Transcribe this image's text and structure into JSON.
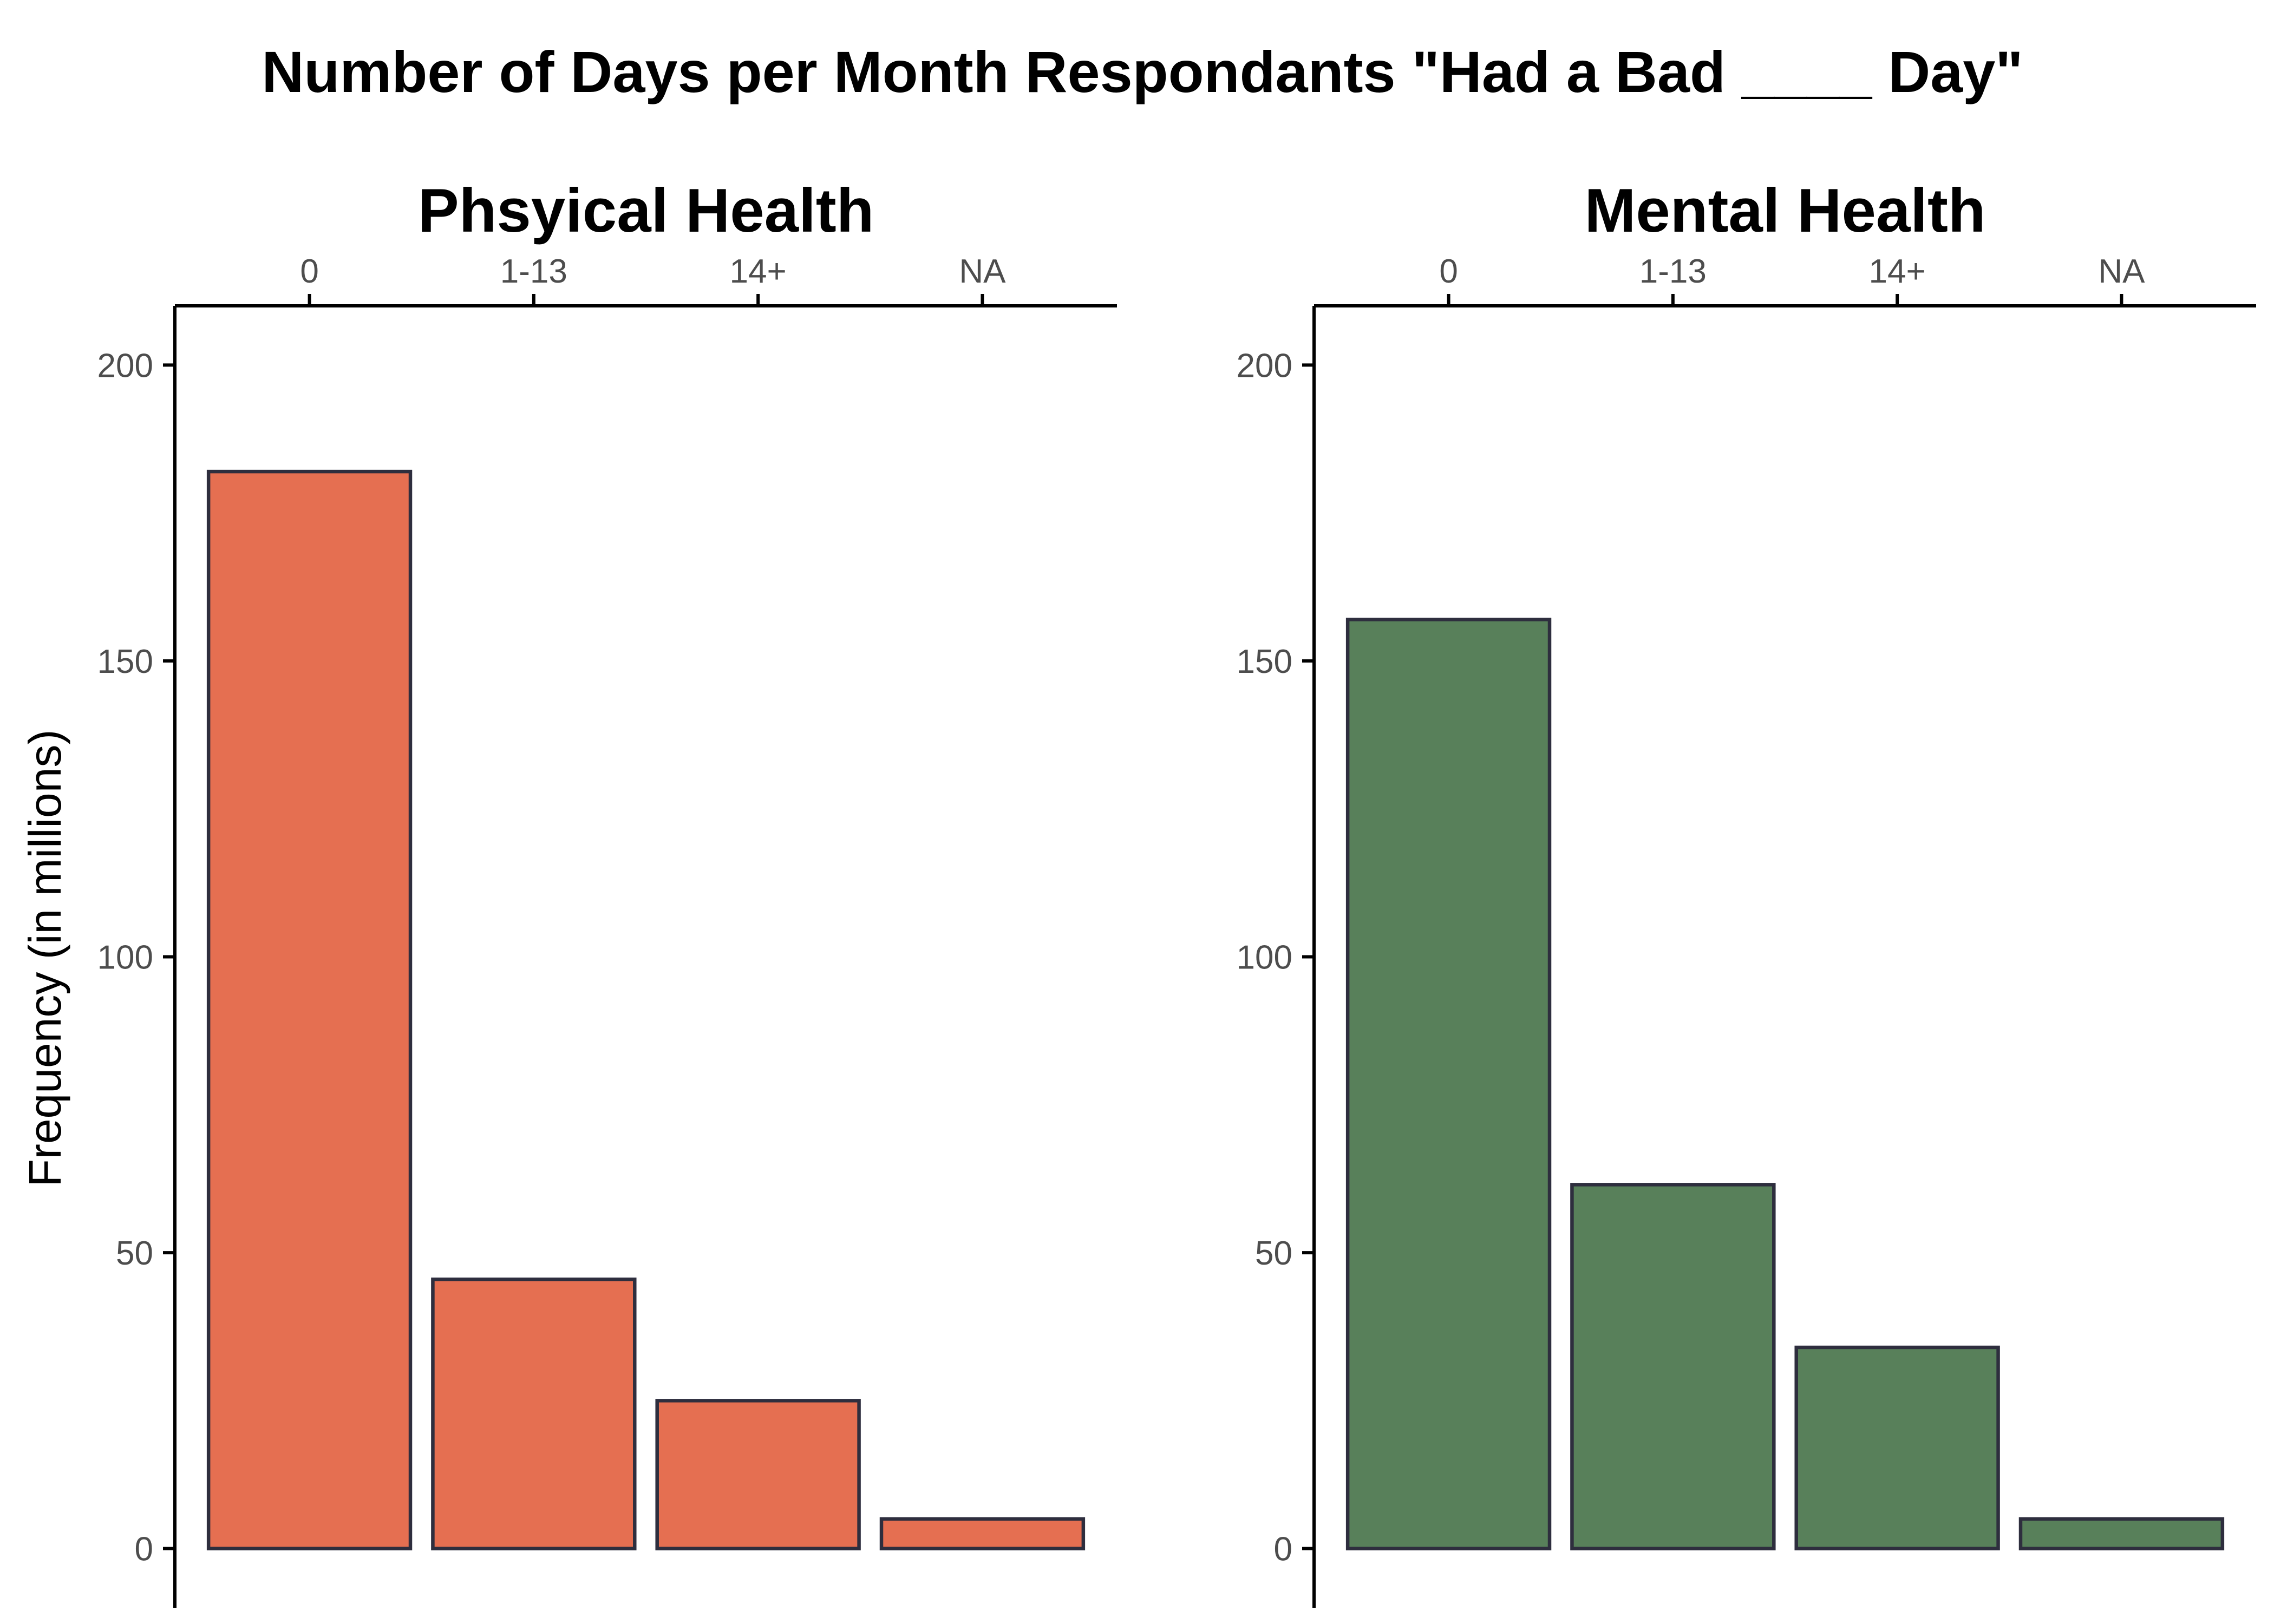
{
  "title": "Number of Days per Month Respondants \"Had a Bad ____ Day\"",
  "ylabel": "Frequency (in millions)",
  "chart_data": [
    {
      "type": "bar",
      "title": "Phsyical Health",
      "categories": [
        "0",
        "1-13",
        "14+",
        "NA"
      ],
      "values": [
        182,
        45.5,
        25,
        5
      ],
      "ylim": [
        -10,
        210
      ],
      "yticks": [
        0,
        50,
        100,
        150,
        200
      ],
      "x_axis_position": "top",
      "color": "#e56f51",
      "ylabel": "Frequency (in millions)",
      "grid": false
    },
    {
      "type": "bar",
      "title": "Mental Health",
      "categories": [
        "0",
        "1-13",
        "14+",
        "NA"
      ],
      "values": [
        157,
        61.5,
        34,
        5
      ],
      "ylim": [
        -10,
        210
      ],
      "yticks": [
        0,
        50,
        100,
        150,
        200
      ],
      "x_axis_position": "top",
      "color": "#58805a",
      "grid": false
    }
  ]
}
